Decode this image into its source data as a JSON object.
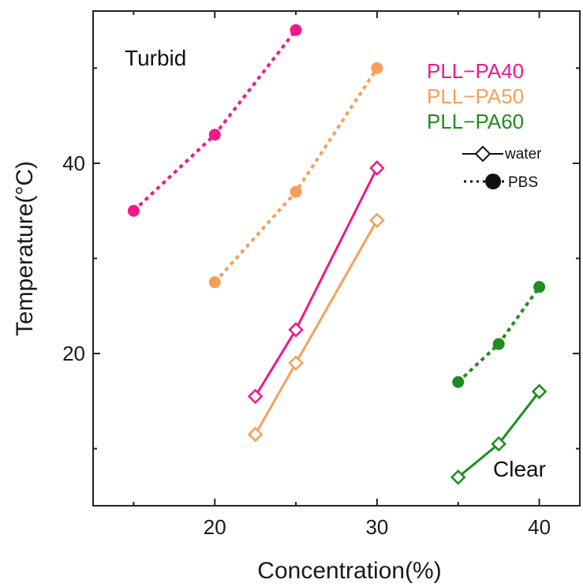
{
  "chart_data": {
    "type": "line",
    "xlabel": "Concentration(%)",
    "ylabel": "Temperature(°C)",
    "xlim": [
      12.5,
      42.5
    ],
    "ylim": [
      4,
      56
    ],
    "x_ticks": [
      20,
      30,
      40
    ],
    "y_ticks": [
      20,
      40
    ],
    "x_minor_ticks": [
      15,
      25,
      35
    ],
    "y_minor_ticks": [
      10,
      30,
      50
    ],
    "annotations": [
      "Turbid",
      "Clear"
    ],
    "colors": {
      "PLL-PA40": "#f0188c",
      "PLL-PA50": "#f79e5b",
      "PLL-PA60": "#1f8c1f"
    },
    "legend": {
      "series_labels": [
        "PLL−PA40",
        "PLL−PA50",
        "PLL−PA60"
      ],
      "style_labels": [
        "water",
        "PBS"
      ],
      "placement": "top-right"
    },
    "series": [
      {
        "name": "PLL−PA40",
        "medium": "PBS",
        "style": "dotted",
        "marker": "filled-circle",
        "x": [
          15,
          20,
          25
        ],
        "y": [
          35,
          43,
          54
        ]
      },
      {
        "name": "PLL−PA50",
        "medium": "PBS",
        "style": "dotted",
        "marker": "filled-circle",
        "x": [
          20,
          25,
          30
        ],
        "y": [
          27.5,
          37,
          50
        ]
      },
      {
        "name": "PLL−PA60",
        "medium": "PBS",
        "style": "dotted",
        "marker": "filled-circle",
        "x": [
          35,
          37.5,
          40
        ],
        "y": [
          17,
          21,
          27
        ]
      },
      {
        "name": "PLL−PA40",
        "medium": "water",
        "style": "solid",
        "marker": "open-diamond",
        "x": [
          22.5,
          25,
          30
        ],
        "y": [
          15.5,
          22.5,
          39.5
        ]
      },
      {
        "name": "PLL−PA50",
        "medium": "water",
        "style": "solid",
        "marker": "open-diamond",
        "x": [
          22.5,
          25,
          30
        ],
        "y": [
          11.5,
          19,
          34
        ]
      },
      {
        "name": "PLL−PA60",
        "medium": "water",
        "style": "solid",
        "marker": "open-diamond",
        "x": [
          35,
          37.5,
          40
        ],
        "y": [
          7,
          10.5,
          16
        ]
      }
    ]
  }
}
